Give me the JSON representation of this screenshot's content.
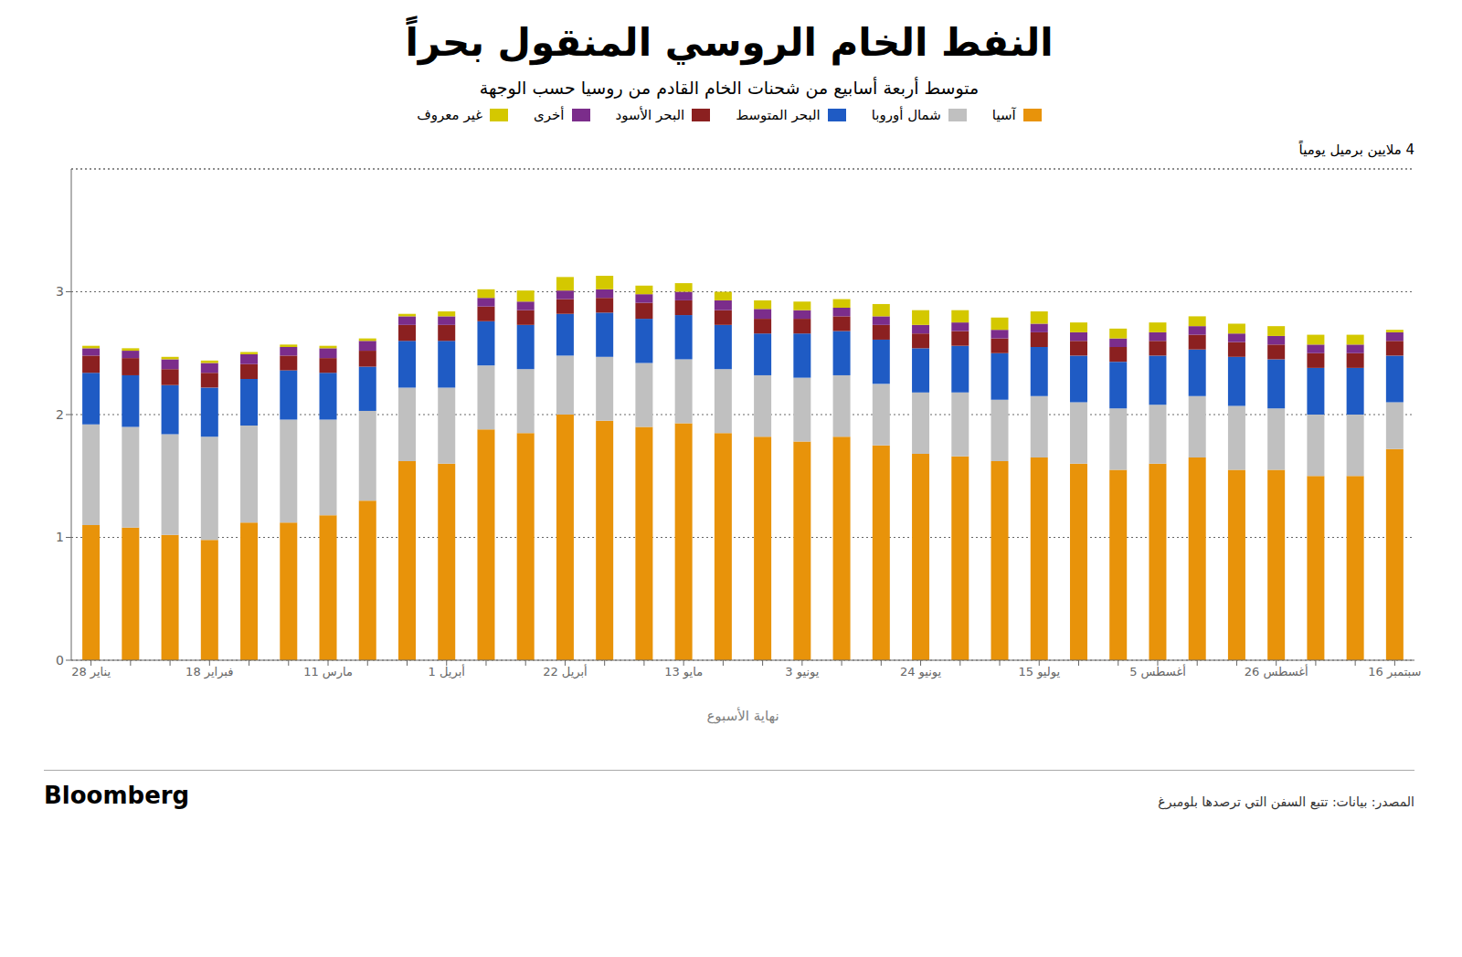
{
  "chart_data": {
    "type": "bar",
    "title": "النفط الخام الروسي المنقول بحراً",
    "subtitle": "متوسط أربعة أسابيع من شحنات الخام القادم من روسيا حسب الوجهة",
    "xlabel": "نهاية الأسبوع",
    "annotations": [
      "4 ملايين برميل يومياً",
      "Bloomberg",
      "المصدر: بيانات: تتبع السفن التي ترصدها بلومبرغ"
    ],
    "categories": [
      "28 يناير",
      null,
      null,
      "18 فبراير",
      null,
      null,
      "11 مارس",
      null,
      null,
      "1 أبريل",
      null,
      null,
      "22 أبريل",
      null,
      null,
      "13 مايو",
      null,
      null,
      "3 يونيو",
      null,
      null,
      "24 يونيو",
      null,
      null,
      "15 يوليو",
      null,
      null,
      "5 أغسطس",
      null,
      null,
      "26 أغسطس",
      null,
      null,
      "16 سبتمبر"
    ],
    "series": [
      {
        "name": "آسيا",
        "color": "#E8930A",
        "values": [
          1.1,
          1.08,
          1.02,
          0.98,
          1.12,
          1.12,
          1.18,
          1.3,
          1.62,
          1.6,
          1.88,
          1.85,
          2.0,
          1.95,
          1.9,
          1.93,
          1.85,
          1.82,
          1.78,
          1.82,
          1.75,
          1.68,
          1.66,
          1.62,
          1.65,
          1.6,
          1.55,
          1.6,
          1.65,
          1.55,
          1.55,
          1.5,
          1.5,
          1.72
        ]
      },
      {
        "name": "شمال أوروبا",
        "color": "#C0C0C0",
        "values": [
          0.82,
          0.82,
          0.82,
          0.84,
          0.79,
          0.84,
          0.78,
          0.73,
          0.6,
          0.62,
          0.52,
          0.52,
          0.48,
          0.52,
          0.52,
          0.52,
          0.52,
          0.5,
          0.52,
          0.5,
          0.5,
          0.5,
          0.52,
          0.5,
          0.5,
          0.5,
          0.5,
          0.48,
          0.5,
          0.52,
          0.5,
          0.5,
          0.5,
          0.38
        ]
      },
      {
        "name": "البحر المتوسط",
        "color": "#1F5BC4",
        "values": [
          0.42,
          0.42,
          0.4,
          0.4,
          0.38,
          0.4,
          0.38,
          0.36,
          0.38,
          0.38,
          0.36,
          0.36,
          0.34,
          0.36,
          0.36,
          0.36,
          0.36,
          0.34,
          0.36,
          0.36,
          0.36,
          0.36,
          0.38,
          0.38,
          0.4,
          0.38,
          0.38,
          0.4,
          0.38,
          0.4,
          0.4,
          0.38,
          0.38,
          0.38
        ]
      },
      {
        "name": "البحر الأسود",
        "color": "#8B2020",
        "values": [
          0.14,
          0.14,
          0.13,
          0.12,
          0.12,
          0.12,
          0.12,
          0.13,
          0.13,
          0.13,
          0.12,
          0.12,
          0.12,
          0.12,
          0.13,
          0.12,
          0.12,
          0.12,
          0.12,
          0.12,
          0.12,
          0.12,
          0.12,
          0.12,
          0.12,
          0.12,
          0.12,
          0.12,
          0.12,
          0.12,
          0.12,
          0.12,
          0.12,
          0.12
        ]
      },
      {
        "name": "أخرى",
        "color": "#7B2D8B",
        "values": [
          0.06,
          0.06,
          0.08,
          0.08,
          0.08,
          0.07,
          0.08,
          0.08,
          0.07,
          0.07,
          0.07,
          0.07,
          0.07,
          0.07,
          0.07,
          0.07,
          0.08,
          0.08,
          0.07,
          0.07,
          0.07,
          0.07,
          0.07,
          0.07,
          0.07,
          0.07,
          0.07,
          0.07,
          0.07,
          0.07,
          0.07,
          0.07,
          0.07,
          0.07
        ]
      },
      {
        "name": "غير معروف",
        "color": "#D4C800",
        "values": [
          0.02,
          0.02,
          0.02,
          0.02,
          0.02,
          0.02,
          0.02,
          0.02,
          0.02,
          0.04,
          0.07,
          0.09,
          0.11,
          0.11,
          0.07,
          0.07,
          0.07,
          0.07,
          0.07,
          0.07,
          0.1,
          0.12,
          0.1,
          0.1,
          0.1,
          0.08,
          0.08,
          0.08,
          0.08,
          0.08,
          0.08,
          0.08,
          0.08,
          0.02
        ]
      }
    ],
    "stacked": true,
    "ylim": [
      0,
      4.0
    ],
    "yticks": [
      0,
      1,
      2,
      3
    ],
    "grid": true,
    "legend": "top"
  }
}
